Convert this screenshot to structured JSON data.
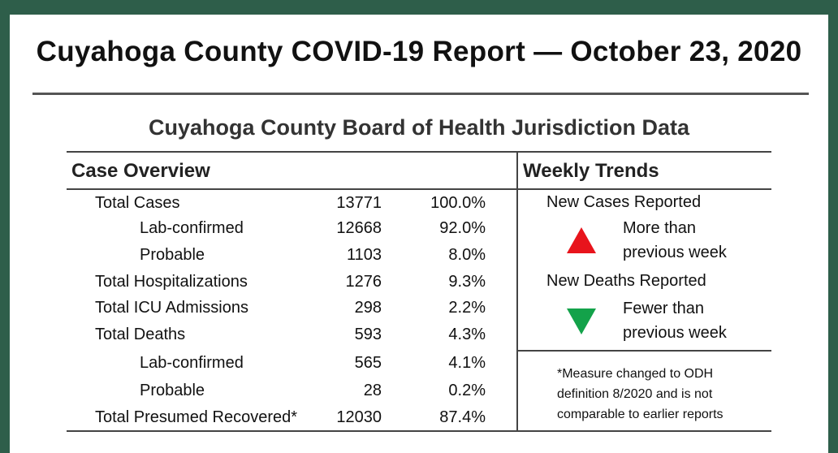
{
  "title": "Cuyahoga County COVID-19 Report — October 23, 2020",
  "subtitle": "Cuyahoga County Board of Health Jurisdiction Data",
  "case_overview": {
    "heading": "Case Overview",
    "rows": [
      {
        "label": "Total Cases",
        "value": "13771",
        "pct": "100.0%",
        "indent": 0
      },
      {
        "label": "Lab-confirmed",
        "value": "12668",
        "pct": "92.0%",
        "indent": 1
      },
      {
        "label": "Probable",
        "value": "1103",
        "pct": "8.0%",
        "indent": 1
      },
      {
        "label": "Total Hospitalizations",
        "value": "1276",
        "pct": "9.3%",
        "indent": 0
      },
      {
        "label": "Total ICU Admissions",
        "value": "298",
        "pct": "2.2%",
        "indent": 0
      },
      {
        "label": "Total Deaths",
        "value": "593",
        "pct": "4.3%",
        "indent": 0
      },
      {
        "label": "Lab-confirmed",
        "value": "565",
        "pct": "4.1%",
        "indent": 1
      },
      {
        "label": "Probable",
        "value": "28",
        "pct": "0.2%",
        "indent": 1
      },
      {
        "label": "Total Presumed Recovered*",
        "value": "12030",
        "pct": "87.4%",
        "indent": 0
      }
    ]
  },
  "weekly_trends": {
    "heading": "Weekly Trends",
    "cases": {
      "label": "New Cases Reported",
      "trend_line1": "More than",
      "trend_line2": "previous week",
      "direction": "up",
      "color": "#e8141c"
    },
    "deaths": {
      "label": "New Deaths Reported",
      "trend_line1": "Fewer than",
      "trend_line2": "previous week",
      "direction": "down",
      "color": "#13a24a"
    }
  },
  "footnote": {
    "line1": "*Measure changed to ODH",
    "line2": "definition 8/2020 and is not",
    "line3": "comparable to earlier reports"
  }
}
